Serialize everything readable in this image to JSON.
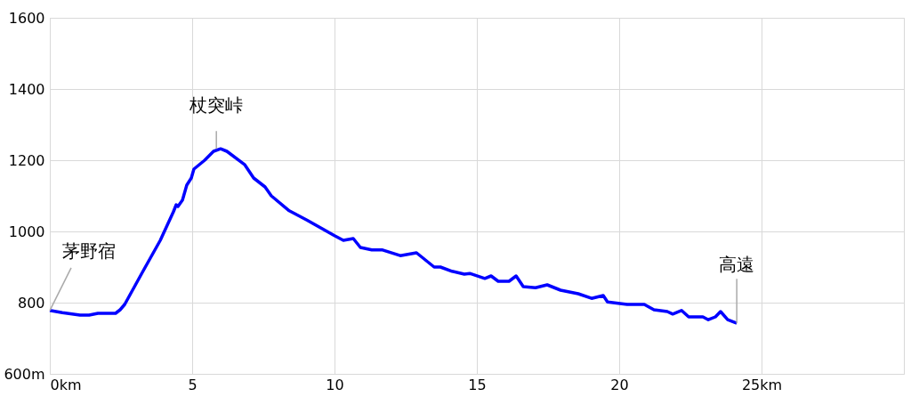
{
  "chart_data": {
    "type": "line",
    "x": [
      0,
      0.44,
      1.06,
      1.38,
      1.69,
      2.31,
      2.47,
      2.63,
      3.25,
      3.88,
      4.34,
      4.44,
      4.5,
      4.66,
      4.81,
      4.97,
      5.06,
      5.44,
      5.75,
      6.0,
      6.22,
      6.84,
      7.16,
      7.56,
      7.78,
      8.41,
      9.03,
      10.0,
      10.31,
      10.66,
      10.91,
      11.31,
      11.69,
      12.31,
      12.88,
      13.5,
      13.72,
      14.13,
      14.56,
      14.75,
      15.28,
      15.5,
      15.75,
      16.13,
      16.38,
      16.63,
      17.06,
      17.47,
      17.94,
      18.56,
      19.03,
      19.44,
      19.59,
      20.28,
      20.88,
      21.22,
      21.69,
      21.88,
      22.19,
      22.44,
      22.94,
      23.13,
      23.38,
      23.56,
      23.81,
      24.13
    ],
    "series": [
      {
        "color": "#0000ff",
        "values": [
          778,
          772,
          765,
          765,
          770,
          770,
          780,
          795,
          885,
          975,
          1055,
          1075,
          1070,
          1088,
          1130,
          1150,
          1175,
          1200,
          1225,
          1232,
          1225,
          1188,
          1150,
          1125,
          1100,
          1058,
          1032,
          988,
          975,
          980,
          955,
          948,
          948,
          932,
          940,
          900,
          900,
          888,
          880,
          882,
          868,
          875,
          860,
          860,
          875,
          845,
          842,
          850,
          835,
          825,
          812,
          820,
          802,
          795,
          795,
          780,
          775,
          768,
          778,
          760,
          760,
          752,
          760,
          775,
          752,
          742
        ]
      }
    ],
    "xlim": [
      0,
      30
    ],
    "xticks": [
      {
        "value": 0,
        "label": "0km"
      },
      5,
      10,
      15,
      20,
      {
        "value": 25,
        "label": "25km"
      },
      {
        "value": 30,
        "label": null
      }
    ],
    "ylim": [
      600,
      1600
    ],
    "yticks": [
      {
        "value": 600,
        "label": "600m"
      },
      800,
      1000,
      1200,
      1400,
      1600
    ],
    "grid": true,
    "marker": "none",
    "line_style": "solid",
    "annotations": [
      {
        "text": "茅野宿",
        "x": 0,
        "y": 778
      },
      {
        "text": "杖突峠",
        "x": 5.85,
        "y": 1232
      },
      {
        "text": "高遠",
        "x": 24.13,
        "y": 742
      }
    ]
  }
}
